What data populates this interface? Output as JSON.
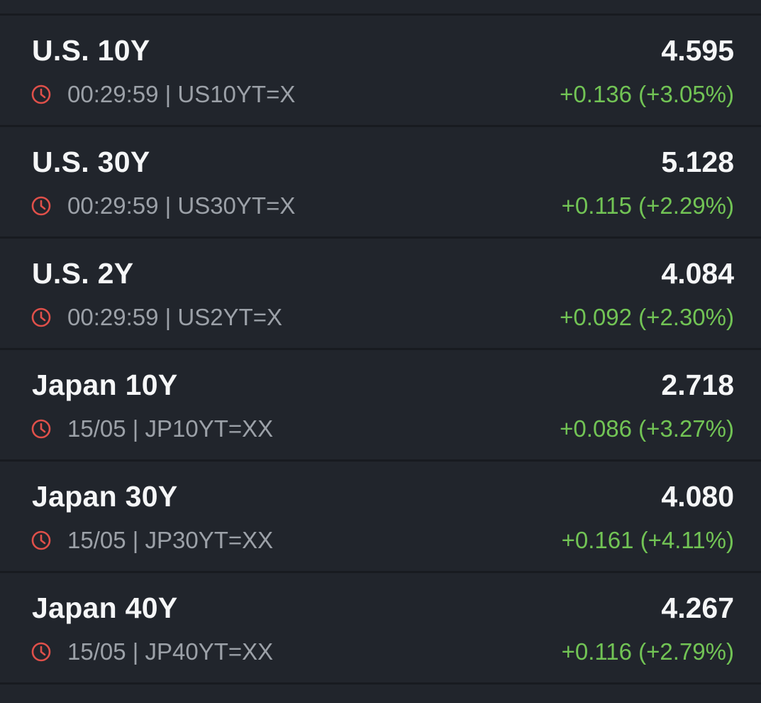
{
  "quotes": [
    {
      "name": "U.S. 10Y",
      "subtitle": "00:29:59 | US10YT=X",
      "price": "4.595",
      "change": "+0.136 (+3.05%)"
    },
    {
      "name": "U.S. 30Y",
      "subtitle": "00:29:59 | US30YT=X",
      "price": "5.128",
      "change": "+0.115 (+2.29%)"
    },
    {
      "name": "U.S. 2Y",
      "subtitle": "00:29:59 | US2YT=X",
      "price": "4.084",
      "change": "+0.092 (+2.30%)"
    },
    {
      "name": "Japan 10Y",
      "subtitle": "15/05 | JP10YT=XX",
      "price": "2.718",
      "change": "+0.086 (+3.27%)"
    },
    {
      "name": "Japan 30Y",
      "subtitle": "15/05 | JP30YT=XX",
      "price": "4.080",
      "change": "+0.161 (+4.11%)"
    },
    {
      "name": "Japan 40Y",
      "subtitle": "15/05 | JP40YT=XX",
      "price": "4.267",
      "change": "+0.116 (+2.79%)"
    }
  ]
}
